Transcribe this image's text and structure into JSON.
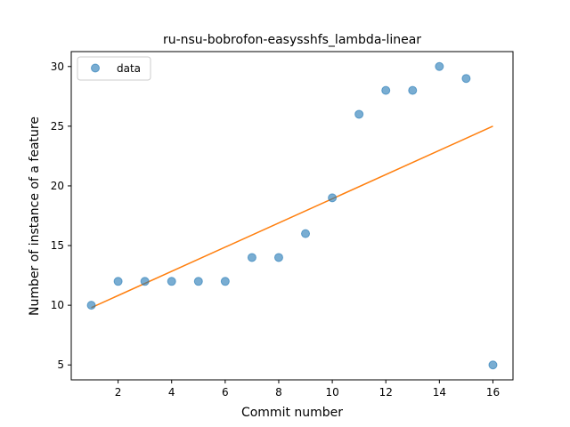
{
  "chart_data": {
    "type": "scatter",
    "title": "ru-nsu-bobrofon-easysshfs_lambda-linear",
    "xlabel": "Commit number",
    "ylabel": "Number of instance of a feature",
    "xlim": [
      0.25,
      16.75
    ],
    "ylim": [
      3.75,
      31.25
    ],
    "xticks": [
      2,
      4,
      6,
      8,
      10,
      12,
      14,
      16
    ],
    "yticks": [
      5,
      10,
      15,
      20,
      25,
      30
    ],
    "grid": false,
    "legend": {
      "position": "top-left",
      "entries": [
        "data"
      ]
    },
    "series": [
      {
        "name": "data",
        "kind": "scatter",
        "color": "#1f77b4",
        "x": [
          1,
          2,
          3,
          4,
          5,
          6,
          7,
          8,
          9,
          10,
          11,
          12,
          13,
          14,
          15,
          16
        ],
        "y": [
          10,
          12,
          12,
          12,
          12,
          12,
          14,
          14,
          16,
          19,
          26,
          28,
          28,
          30,
          29,
          5
        ]
      },
      {
        "kind": "line",
        "color": "#ff7f0e",
        "x": [
          1,
          16
        ],
        "y": [
          9.8,
          25.0
        ]
      }
    ]
  }
}
